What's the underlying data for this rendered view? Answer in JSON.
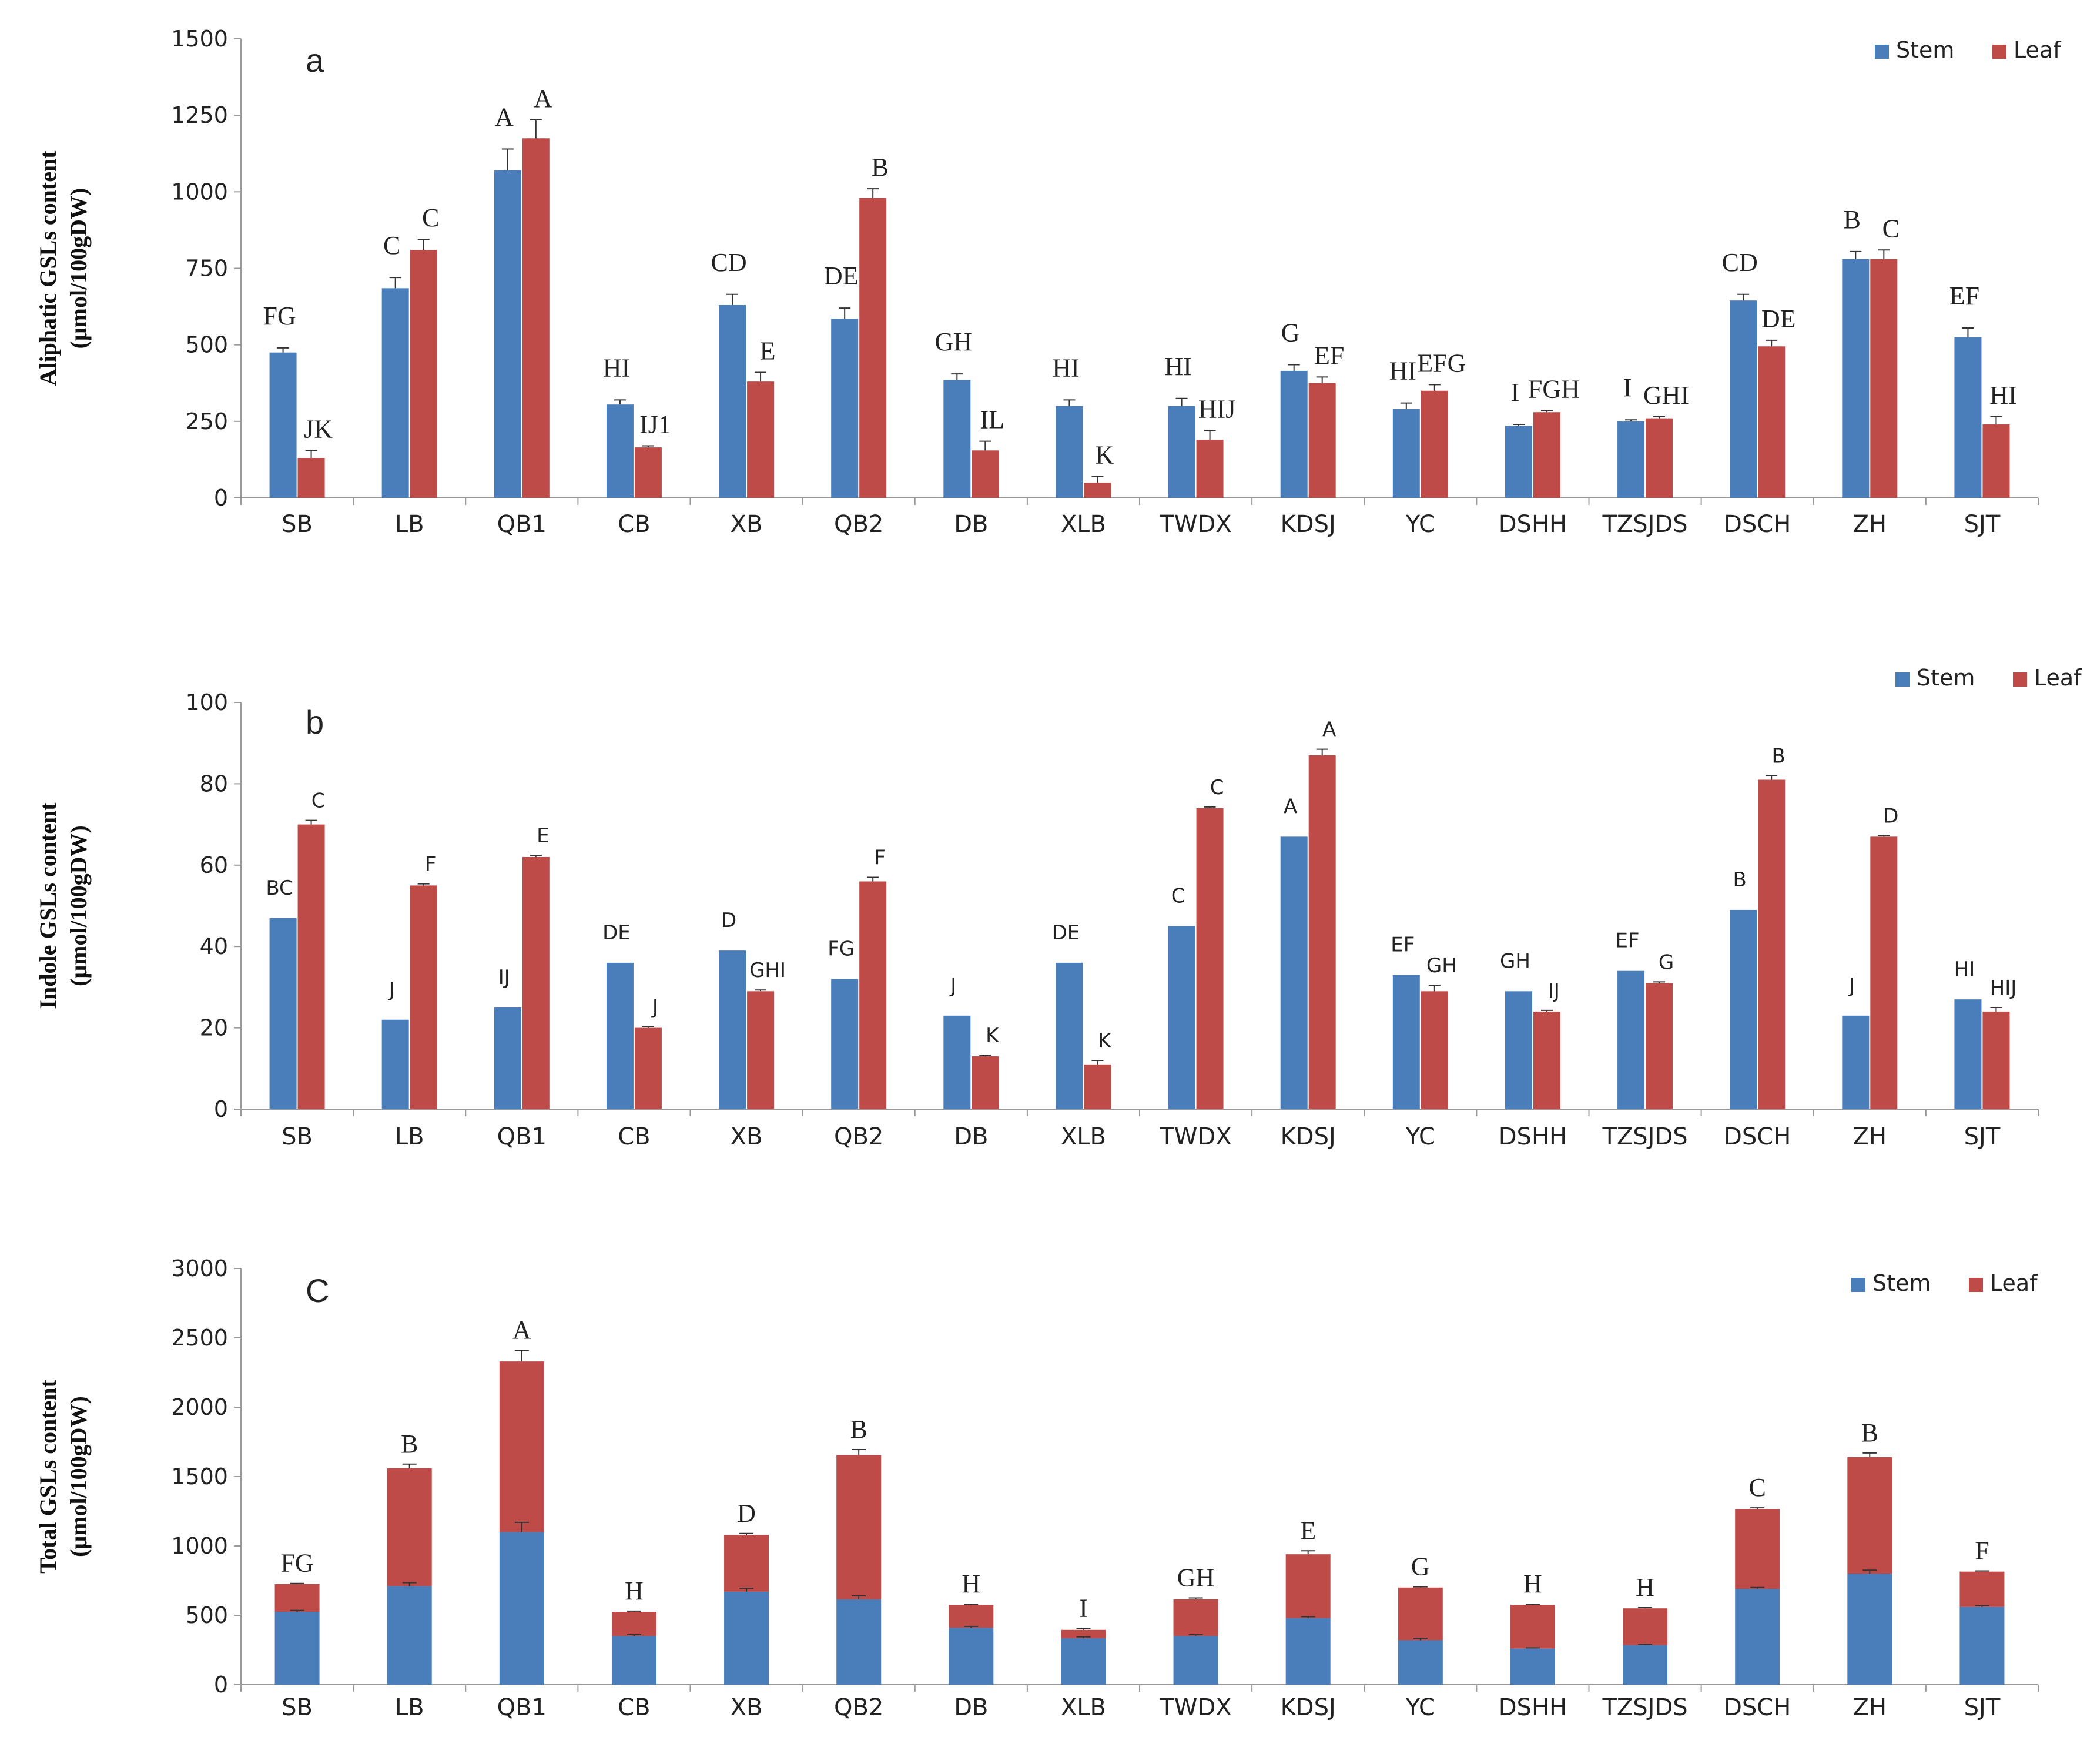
{
  "figure": {
    "categories": [
      "SB",
      "LB",
      "QB1",
      "CB",
      "XB",
      "QB2",
      "DB",
      "XLB",
      "TWDX",
      "KDSJ",
      "YC",
      "DSHH",
      "TZSJDS",
      "DSCH",
      "ZH",
      "SJT"
    ],
    "colors": {
      "stem": "#4a7ebb",
      "leaf": "#be4b48"
    }
  },
  "chart_data": [
    {
      "type": "bar",
      "panel": "a",
      "title": "",
      "xlabel": "",
      "ylabel": "Aliphatic GSLs content (μmol/100gDW)",
      "ylabel_lines": [
        "Aliphatic GSLs content",
        "(μmol/100gDW)"
      ],
      "ylim": [
        0,
        1500
      ],
      "yticks": [
        0,
        250,
        500,
        750,
        1000,
        1250,
        1500
      ],
      "legend": [
        "Stem",
        "Leaf"
      ],
      "legend_position": "top-right",
      "categories": [
        "SB",
        "LB",
        "QB1",
        "CB",
        "XB",
        "QB2",
        "DB",
        "XLB",
        "TWDX",
        "KDSJ",
        "YC",
        "DSHH",
        "TZSJDS",
        "DSCH",
        "ZH",
        "SJT"
      ],
      "series": [
        {
          "name": "Stem",
          "values": [
            475,
            685,
            1070,
            305,
            630,
            585,
            385,
            300,
            300,
            415,
            290,
            235,
            250,
            645,
            780,
            525
          ],
          "errors": [
            15,
            35,
            70,
            15,
            35,
            35,
            20,
            20,
            25,
            20,
            20,
            5,
            5,
            20,
            25,
            30
          ],
          "letters": [
            "FG",
            "C",
            "A",
            "HI",
            "CD",
            "DE",
            "GH",
            "HI",
            "HI",
            "G",
            "HI",
            "I",
            "I",
            "CD",
            "B",
            "EF"
          ]
        },
        {
          "name": "Leaf",
          "values": [
            130,
            810,
            1175,
            165,
            380,
            980,
            155,
            50,
            190,
            375,
            350,
            280,
            260,
            495,
            780,
            240
          ],
          "errors": [
            25,
            35,
            60,
            5,
            30,
            30,
            30,
            20,
            30,
            20,
            20,
            5,
            5,
            20,
            30,
            25
          ],
          "letters": [
            "JK",
            "C",
            "A",
            "IJ1",
            "E",
            "B",
            "IL",
            "K",
            "HIJ",
            "EF",
            "EFG",
            "FGH",
            "GHI",
            "DE",
            "C",
            "HI"
          ]
        }
      ]
    },
    {
      "type": "bar",
      "panel": "b",
      "title": "",
      "xlabel": "",
      "ylabel": "Indole GSLs content (μmol/100gDW)",
      "ylabel_lines": [
        "Indole GSLs content",
        "(μmol/100gDW)"
      ],
      "ylim": [
        0,
        100
      ],
      "yticks": [
        0,
        20,
        40,
        60,
        80,
        100
      ],
      "legend": [
        "Stem",
        "Leaf"
      ],
      "legend_position": "top-right",
      "categories": [
        "SB",
        "LB",
        "QB1",
        "CB",
        "XB",
        "QB2",
        "DB",
        "XLB",
        "TWDX",
        "KDSJ",
        "YC",
        "DSHH",
        "TZSJDS",
        "DSCH",
        "ZH",
        "SJT"
      ],
      "series": [
        {
          "name": "Stem",
          "values": [
            47,
            22,
            25,
            36,
            39,
            32,
            23,
            36,
            45,
            67,
            33,
            29,
            34,
            49,
            23,
            27
          ],
          "errors": [
            0,
            0,
            0,
            0,
            0,
            0,
            0,
            0,
            0,
            0,
            0,
            0,
            0,
            0,
            0,
            0
          ],
          "letters": [
            "BC",
            "J",
            "IJ",
            "DE",
            "D",
            "FG",
            "J",
            "DE",
            "C",
            "A",
            "EF",
            "GH",
            "EF",
            "B",
            "J",
            "HI"
          ]
        },
        {
          "name": "Leaf",
          "values": [
            70,
            55,
            62,
            20,
            29,
            56,
            13,
            11,
            74,
            87,
            29,
            24,
            31,
            81,
            67,
            24
          ],
          "errors": [
            1,
            0.4,
            0.4,
            0.3,
            0.3,
            1,
            0.3,
            1,
            0.3,
            1.5,
            1.5,
            0.3,
            0.3,
            1,
            0.3,
            1
          ],
          "letters": [
            "C",
            "F",
            "E",
            "J",
            "GHI",
            "F",
            "K",
            "K",
            "C",
            "A",
            "GH",
            "IJ",
            "G",
            "B",
            "D",
            "HIJ"
          ]
        }
      ]
    },
    {
      "type": "bar",
      "stacked": true,
      "panel": "c",
      "title": "",
      "xlabel": "",
      "ylabel": "Total GSLs content (μmol/100gDW)",
      "ylabel_lines": [
        "Total GSLs content",
        "(μmol/100gDW)"
      ],
      "ylim": [
        0,
        3000
      ],
      "yticks": [
        0,
        500,
        1000,
        1500,
        2000,
        2500,
        3000
      ],
      "legend": [
        "Stem",
        "Leaf"
      ],
      "legend_position": "top-right",
      "categories": [
        "SB",
        "LB",
        "QB1",
        "CB",
        "XB",
        "QB2",
        "DB",
        "XLB",
        "TWDX",
        "KDSJ",
        "YC",
        "DSHH",
        "TZSJDS",
        "DSCH",
        "ZH",
        "SJT"
      ],
      "series": [
        {
          "name": "Stem",
          "values": [
            525,
            710,
            1100,
            350,
            670,
            615,
            410,
            335,
            350,
            480,
            320,
            260,
            285,
            690,
            800,
            560
          ],
          "errors": [
            10,
            25,
            70,
            10,
            25,
            25,
            10,
            10,
            10,
            10,
            15,
            5,
            5,
            10,
            25,
            10
          ]
        },
        {
          "name": "Leaf",
          "values": [
            200,
            850,
            1230,
            175,
            410,
            1040,
            165,
            60,
            265,
            460,
            380,
            315,
            265,
            575,
            840,
            255
          ],
          "errors": [
            5,
            30,
            80,
            5,
            10,
            40,
            5,
            10,
            10,
            25,
            5,
            5,
            5,
            10,
            30,
            5
          ]
        }
      ],
      "totals": [
        725,
        1560,
        2330,
        525,
        1080,
        1655,
        575,
        395,
        615,
        940,
        700,
        575,
        550,
        1265,
        1640,
        815
      ],
      "letters": [
        "FG",
        "B",
        "A",
        "H",
        "D",
        "B",
        "H",
        "I",
        "GH",
        "E",
        "G",
        "H",
        "H",
        "C",
        "B",
        "F"
      ]
    }
  ]
}
